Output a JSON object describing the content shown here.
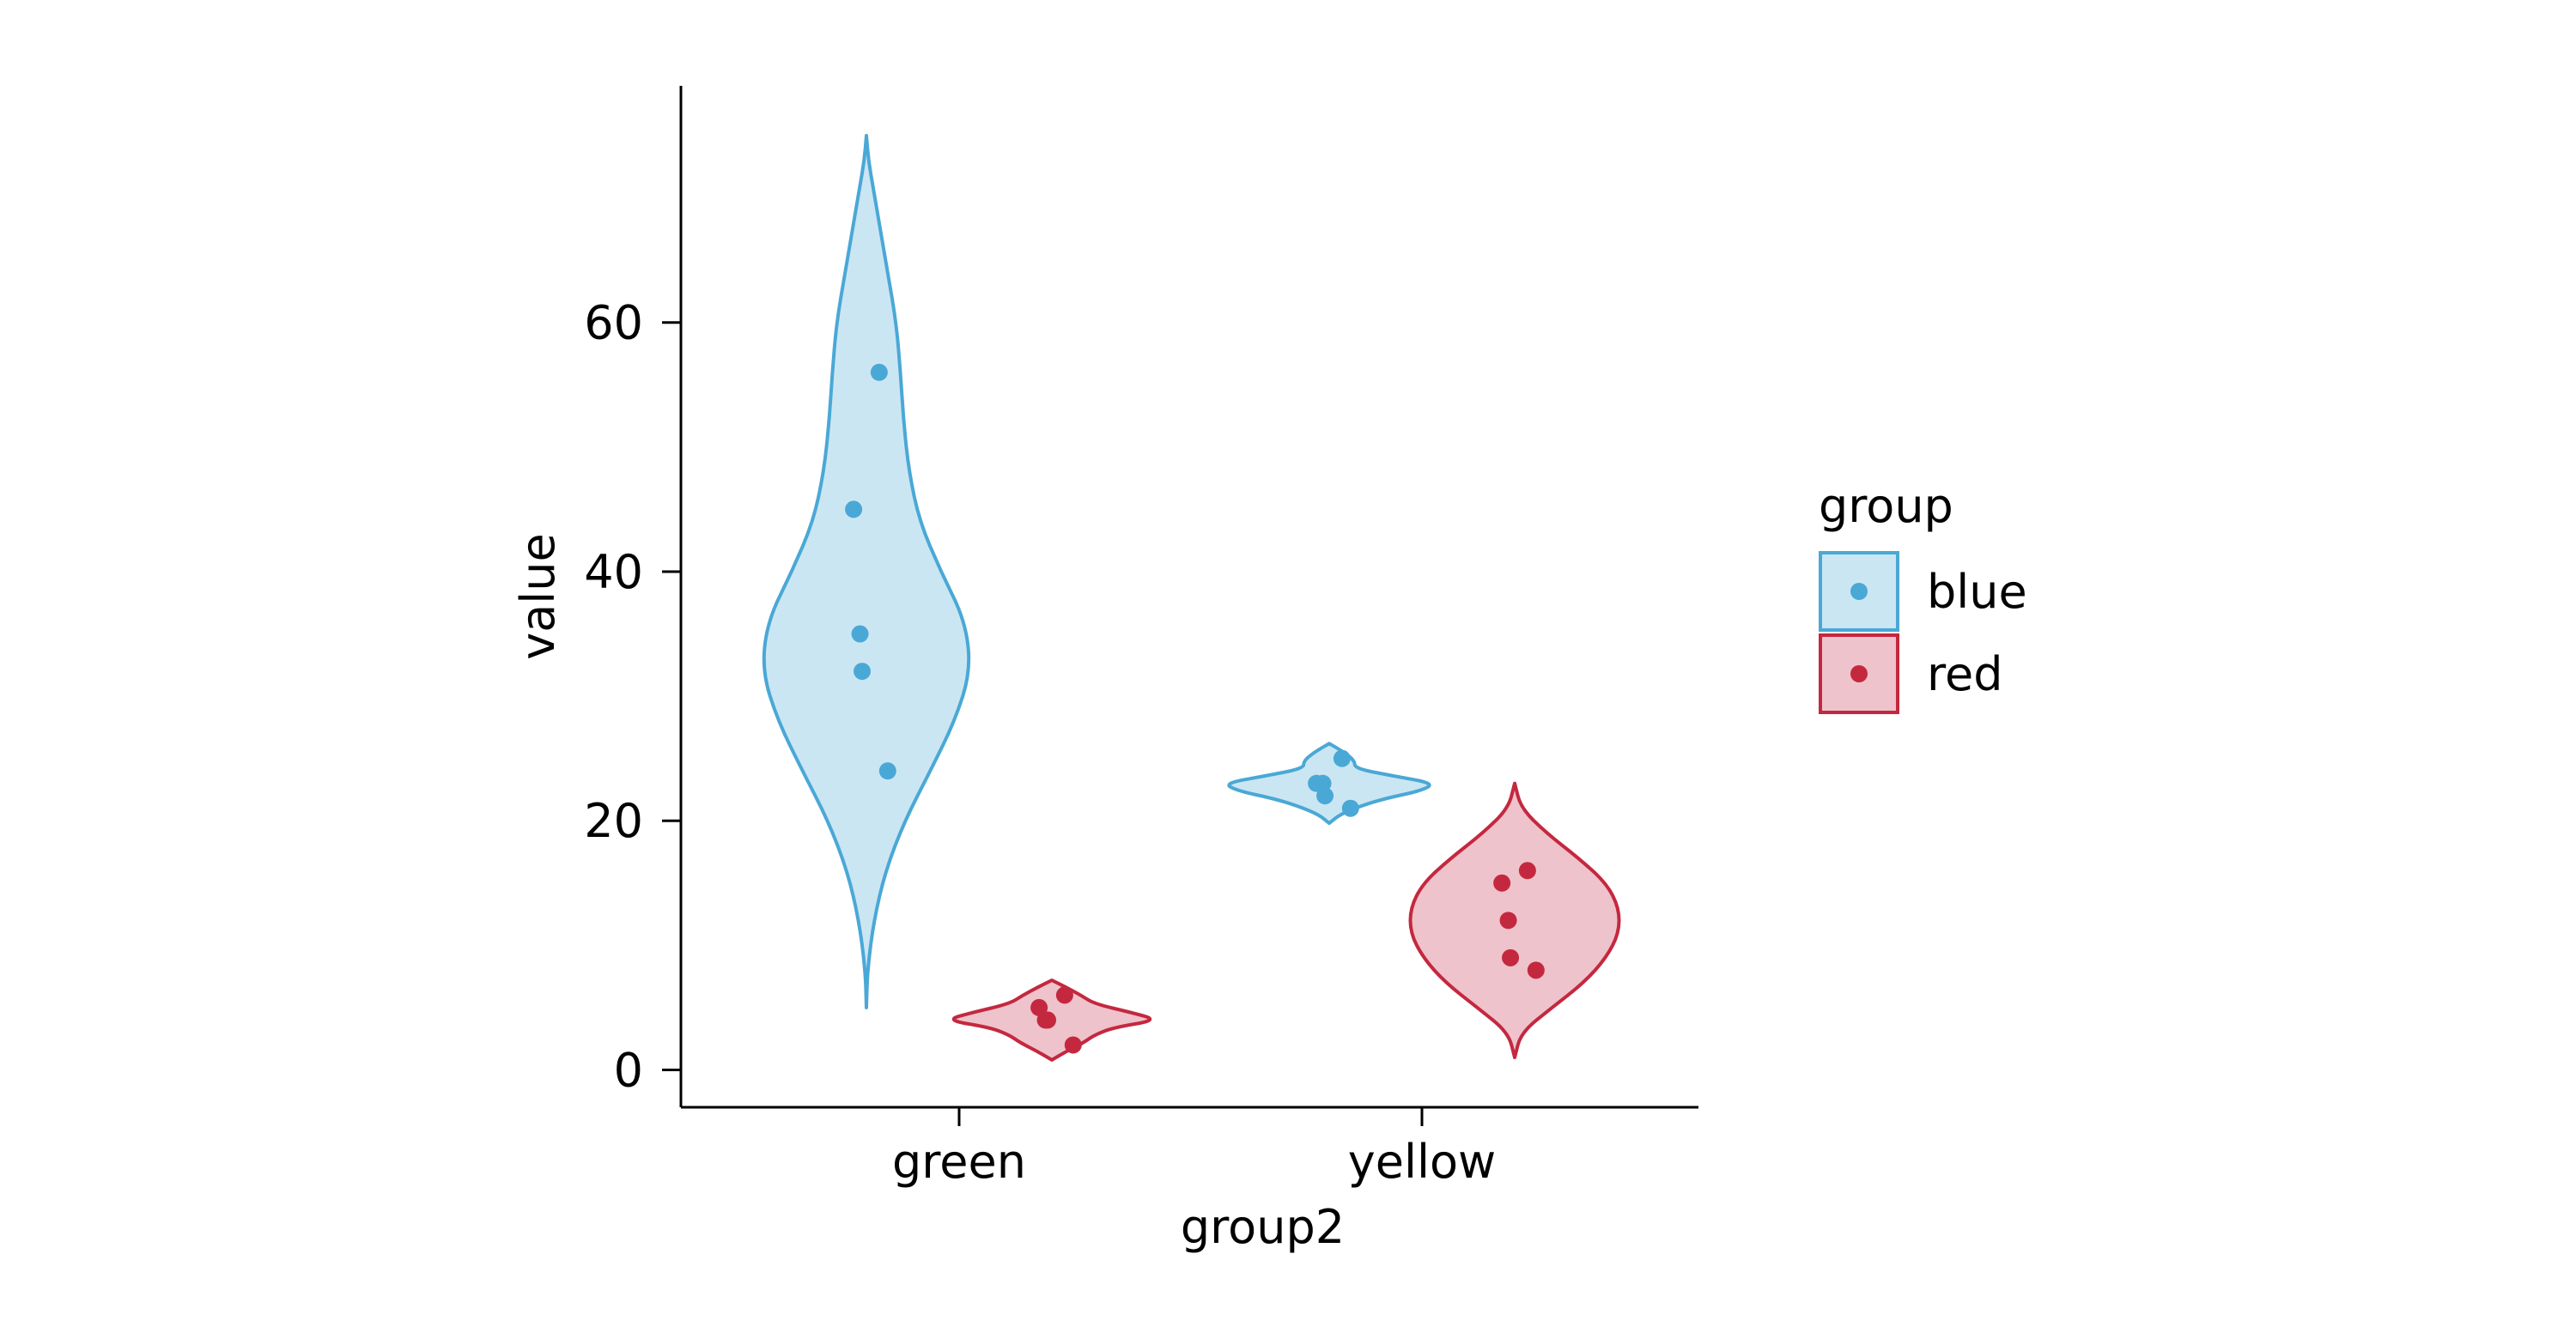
{
  "chart_data": {
    "type": "violin",
    "title": "",
    "xlabel": "group2",
    "ylabel": "value",
    "categories": [
      "green",
      "yellow"
    ],
    "ylim": [
      -3,
      79
    ],
    "yticks": [
      0,
      20,
      40,
      60
    ],
    "grid": false,
    "legend": {
      "title": "group",
      "placement": "right",
      "entries": [
        "blue",
        "red"
      ]
    },
    "colors": {
      "blue": {
        "stroke": "#4aa8d6",
        "fill": "#cbe6f3"
      },
      "red": {
        "stroke": "#c4283f",
        "fill": "#efc3cb"
      }
    },
    "series": [
      {
        "name": "blue",
        "groups": [
          {
            "category": "green",
            "points": [
              56,
              45,
              35,
              32,
              24
            ],
            "violin": {
              "min": 5,
              "max": 75,
              "profile": [
                [
                  5,
                  0.0
                ],
                [
                  8,
                  0.01
                ],
                [
                  12,
                  0.07
                ],
                [
                  16,
                  0.18
                ],
                [
                  20,
                  0.36
                ],
                [
                  24,
                  0.6
                ],
                [
                  28,
                  0.83
                ],
                [
                  32,
                  0.98
                ],
                [
                  36,
                  0.93
                ],
                [
                  40,
                  0.7
                ],
                [
                  44,
                  0.5
                ],
                [
                  48,
                  0.4
                ],
                [
                  52,
                  0.35
                ],
                [
                  56,
                  0.32
                ],
                [
                  60,
                  0.28
                ],
                [
                  64,
                  0.2
                ],
                [
                  68,
                  0.12
                ],
                [
                  71,
                  0.06
                ],
                [
                  73,
                  0.02
                ],
                [
                  75,
                  0.0
                ]
              ]
            }
          },
          {
            "category": "yellow",
            "points": [
              25,
              23,
              23,
              22,
              21
            ],
            "violin": {
              "min": 19.8,
              "max": 26.2,
              "profile": [
                [
                  19.8,
                  0.0
                ],
                [
                  20.5,
                  0.1
                ],
                [
                  21.2,
                  0.3
                ],
                [
                  21.8,
                  0.53
                ],
                [
                  22.4,
                  0.86
                ],
                [
                  23.0,
                  0.99
                ],
                [
                  23.6,
                  0.6
                ],
                [
                  24.2,
                  0.24
                ],
                [
                  24.8,
                  0.24
                ],
                [
                  25.5,
                  0.14
                ],
                [
                  26.2,
                  0.0
                ]
              ]
            }
          }
        ]
      },
      {
        "name": "red",
        "groups": [
          {
            "category": "green",
            "points": [
              6,
              5,
              4,
              4,
              2
            ],
            "violin": {
              "min": 0.8,
              "max": 7.2,
              "profile": [
                [
                  0.8,
                  0.0
                ],
                [
                  1.5,
                  0.14
                ],
                [
                  2.2,
                  0.3
                ],
                [
                  2.8,
                  0.4
                ],
                [
                  3.4,
                  0.58
                ],
                [
                  4.0,
                  1.0
                ],
                [
                  4.6,
                  0.75
                ],
                [
                  5.3,
                  0.4
                ],
                [
                  6.0,
                  0.27
                ],
                [
                  6.6,
                  0.14
                ],
                [
                  7.2,
                  0.0
                ]
              ]
            }
          },
          {
            "category": "yellow",
            "points": [
              16,
              15,
              12,
              9,
              8
            ],
            "violin": {
              "min": 1,
              "max": 23,
              "profile": [
                [
                  1,
                  0.0
                ],
                [
                  3,
                  0.06
                ],
                [
                  5,
                  0.35
                ],
                [
                  7,
                  0.65
                ],
                [
                  9,
                  0.86
                ],
                [
                  11,
                  0.98
                ],
                [
                  13,
                  0.98
                ],
                [
                  15,
                  0.86
                ],
                [
                  17,
                  0.6
                ],
                [
                  19,
                  0.3
                ],
                [
                  21,
                  0.06
                ],
                [
                  23,
                  0.0
                ]
              ]
            }
          }
        ]
      }
    ]
  }
}
